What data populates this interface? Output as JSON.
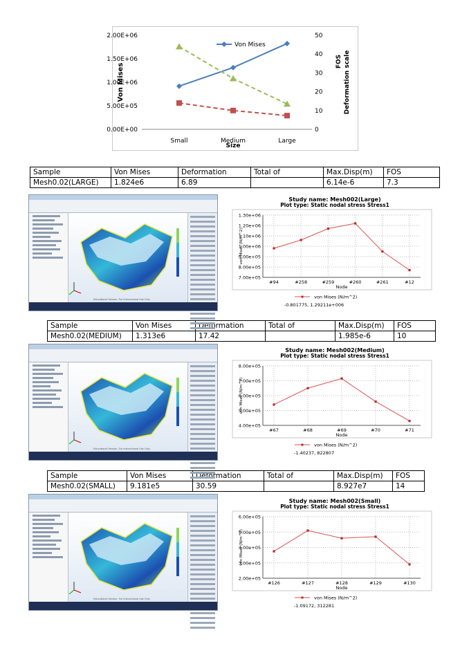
{
  "top_chart": {
    "chart_data": {
      "type": "line",
      "categories": [
        "Small",
        "Medium",
        "Large"
      ],
      "xlabel": "Size",
      "ylabel_left": "Von Mises",
      "ylabel_right_1": "FOS",
      "ylabel_right_2": "Deformation scale",
      "yleft_ticks": [
        "0.00E+00",
        "5.00E+05",
        "1.00E+06",
        "1.50E+06",
        "2.00E+06"
      ],
      "yright_ticks": [
        "0",
        "10",
        "20",
        "30",
        "40",
        "50"
      ],
      "ylim_left": [
        0,
        2000000
      ],
      "ylim_right": [
        0,
        50
      ],
      "series": [
        {
          "name": "Von Mises",
          "axis": "left",
          "values": [
            918100,
            1313000,
            1824000
          ],
          "color": "#4a7ebb",
          "marker": "diamond"
        },
        {
          "name": "",
          "axis": "right",
          "values": [
            44,
            27,
            13.5
          ],
          "color": "#9bbb59",
          "marker": "triangle",
          "dash": "dashed"
        },
        {
          "name": "",
          "axis": "right",
          "values": [
            14,
            10,
            7.3
          ],
          "color": "#c0504d",
          "marker": "square",
          "dash": "dashed"
        }
      ],
      "legend": "top-center"
    }
  },
  "tables": [
    {
      "headers": [
        "Sample",
        "Von Mises",
        "Deformation",
        "Total of",
        "Max.Disp(m)",
        "FOS"
      ],
      "row": [
        "Mesh0.02(LARGE)",
        "1.824e6",
        "6.89",
        "",
        "6.14e-6",
        "7.3"
      ]
    },
    {
      "headers": [
        "Sample",
        "Von Mises",
        "Deformation",
        "Total of",
        "Max.Disp(m)",
        "FOS"
      ],
      "row": [
        "Mesh0.02(MEDIUM)",
        "1.313e6",
        "17.42",
        "",
        "1.985e-6",
        "10"
      ]
    },
    {
      "headers": [
        "Sample",
        "Von Mises",
        "Deformation",
        "Total of",
        "Max.Disp(m)",
        "FOS"
      ],
      "row": [
        "Mesh0.02(SMALL)",
        "9.181e5",
        "30.59",
        "",
        "8.927e7",
        "14"
      ]
    }
  ],
  "stress_plots": [
    {
      "title": "Study name: Mesh002(Large)",
      "subtitle": "Plot type: Static nodal stress Stress1",
      "chart_data": {
        "type": "line",
        "categories": [
          "#94",
          "#258",
          "#259",
          "#260",
          "#261",
          "#12"
        ],
        "values": [
          980000,
          1060000,
          1170000,
          1220000,
          950000,
          770000
        ],
        "ylim": [
          700000,
          1300000
        ],
        "yticks": [
          "7.00e+05",
          "8.00e+05",
          "9.00e+05",
          "1.00e+06",
          "1.10e+06",
          "1.20e+06",
          "1.30e+06"
        ],
        "xlabel": "Node",
        "ylabel": "von Mises (N/m^2)",
        "legend": "von Mises (N/m^2)",
        "readout": "-0.801775, 1.29211e+006"
      }
    },
    {
      "title": "Study name: Mesh002(Medium)",
      "subtitle": "Plot type: Static nodal stress Stress1",
      "chart_data": {
        "type": "line",
        "categories": [
          "#67",
          "#68",
          "#69",
          "#70",
          "#71"
        ],
        "values": [
          540000,
          650000,
          715000,
          560000,
          430000
        ],
        "ylim": [
          400000,
          800000
        ],
        "yticks": [
          "4.00e+05",
          "5.00e+05",
          "6.00e+05",
          "7.00e+05",
          "8.00e+05"
        ],
        "xlabel": "Node",
        "ylabel": "von Mises (N/m^2)",
        "legend": "von Mises (N/m^2)",
        "readout": "-1.40237, 822807"
      }
    },
    {
      "title": "Study name: Mesh002(Small)",
      "subtitle": "Plot type: Static nodal stress Stress1",
      "chart_data": {
        "type": "line",
        "categories": [
          "#126",
          "#127",
          "#128",
          "#129",
          "#130"
        ],
        "values": [
          375000,
          510000,
          460000,
          470000,
          290000
        ],
        "ylim": [
          200000,
          600000
        ],
        "yticks": [
          "2.00e+05",
          "3.00e+05",
          "4.00e+05",
          "5.00e+05",
          "6.00e+05"
        ],
        "xlabel": "Node",
        "ylabel": "von Mises (N/m^2)",
        "legend": "von Mises (N/m^2)",
        "readout": "-1.09172, 312281"
      }
    }
  ],
  "screenshots": [
    {
      "footer": "Educational Version. For Instructional Use Only",
      "colors": [
        "#1b4fb0",
        "#35b8d8",
        "#8fd65a",
        "#e8e43a"
      ]
    },
    {
      "footer": "Educational Version. For Instructional Use Only",
      "colors": [
        "#1b4fb0",
        "#35b8d8",
        "#8fd65a",
        "#e8e43a"
      ]
    },
    {
      "footer": "Educational Version. For Instructional Use Only",
      "colors": [
        "#1b4fb0",
        "#35b8d8",
        "#8fd65a",
        "#e8e43a"
      ]
    }
  ]
}
